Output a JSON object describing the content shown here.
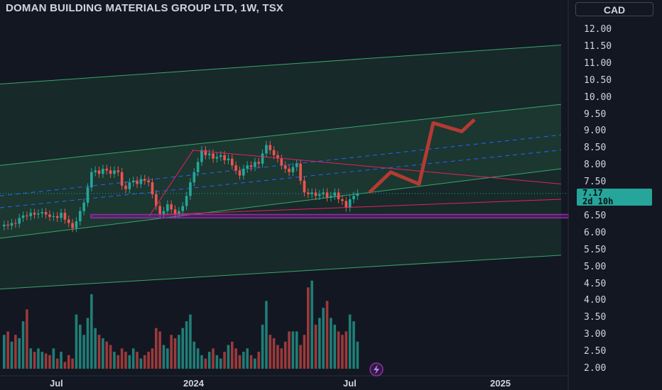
{
  "header": {
    "title": "DOMAN BUILDING MATERIALS GROUP LTD, 1W, TSX",
    "currency": "CAD"
  },
  "price_badge": {
    "price": "7.17",
    "countdown": "2d 10h"
  },
  "chart_data": {
    "type": "candlestick",
    "y_ticks": [
      "12.00",
      "11.50",
      "11.00",
      "10.50",
      "10.00",
      "9.50",
      "9.00",
      "8.50",
      "8.00",
      "7.50",
      "7.00",
      "6.50",
      "6.00",
      "5.50",
      "5.00",
      "4.50",
      "4.00",
      "3.50",
      "3.00",
      "2.50",
      "2.00"
    ],
    "x_ticks": [
      "Jul",
      "2024",
      "Jul",
      "2025"
    ],
    "ylim": [
      2.0,
      12.0
    ],
    "last_price": 7.17,
    "colors": {
      "up": "#26a69a",
      "down": "#ef5350",
      "volume_up": "#1f7e76",
      "volume_down": "#9c3a3a",
      "channel": "#2e7d4f",
      "support": "#9c27b0",
      "projection": "#b23b33"
    },
    "candles_close": [
      6.25,
      6.22,
      6.3,
      6.28,
      6.45,
      6.52,
      6.5,
      6.6,
      6.55,
      6.58,
      6.62,
      6.55,
      6.48,
      6.5,
      6.45,
      6.6,
      6.4,
      6.3,
      6.15,
      6.35,
      6.65,
      6.9,
      7.35,
      7.8,
      7.85,
      7.75,
      7.9,
      7.85,
      7.75,
      7.85,
      7.8,
      7.4,
      7.3,
      7.5,
      7.55,
      7.45,
      7.6,
      7.55,
      7.5,
      7.15,
      6.8,
      6.55,
      6.65,
      6.85,
      6.7,
      6.55,
      6.65,
      6.8,
      7.1,
      7.5,
      7.8,
      8.1,
      8.45,
      8.3,
      8.35,
      8.2,
      8.25,
      8.3,
      8.15,
      8.2,
      8.0,
      7.85,
      7.7,
      7.9,
      8.0,
      7.95,
      8.1,
      8.05,
      8.35,
      8.6,
      8.45,
      8.3,
      8.2,
      8.0,
      7.9,
      7.8,
      7.95,
      8.05,
      7.55,
      7.2,
      7.15,
      7.2,
      7.1,
      7.15,
      7.2,
      7.05,
      7.1,
      7.2,
      7.0,
      6.95,
      6.75,
      7.0,
      7.1,
      7.17
    ],
    "volume": [
      3.0,
      3.1,
      2.8,
      3.0,
      2.9,
      3.4,
      3.75,
      2.6,
      2.5,
      2.6,
      2.5,
      2.45,
      2.4,
      2.6,
      2.3,
      2.5,
      2.2,
      2.4,
      2.3,
      3.6,
      3.3,
      3.0,
      3.5,
      4.2,
      3.2,
      3.0,
      2.9,
      2.8,
      2.7,
      2.5,
      2.4,
      2.6,
      2.5,
      2.4,
      2.6,
      2.5,
      2.3,
      2.4,
      2.5,
      2.6,
      3.2,
      3.1,
      2.7,
      2.6,
      3.0,
      2.9,
      3.0,
      3.2,
      3.4,
      3.6,
      2.8,
      2.6,
      2.4,
      2.3,
      2.5,
      2.6,
      2.4,
      2.3,
      2.5,
      2.7,
      2.8,
      2.6,
      2.4,
      2.5,
      2.6,
      2.4,
      2.3,
      2.5,
      3.3,
      4.0,
      3.0,
      2.9,
      2.7,
      2.6,
      2.8,
      3.1,
      3.1,
      3.1,
      2.7,
      3.0,
      4.4,
      4.6,
      3.3,
      3.5,
      3.8,
      4.0,
      3.5,
      3.3,
      3.1,
      3.0,
      3.1,
      3.6,
      3.4,
      2.8
    ],
    "channel_upper": [
      [
        0,
        8.0
      ],
      [
        790,
        9.8
      ]
    ],
    "channel_middle": [
      [
        0,
        7.1
      ],
      [
        790,
        8.9
      ]
    ],
    "channel_lower": [
      [
        0,
        5.85
      ],
      [
        790,
        7.9
      ]
    ],
    "outer_channel_upper": [
      [
        0,
        10.4
      ],
      [
        790,
        11.55
      ]
    ],
    "outer_channel_lower": [
      [
        0,
        4.35
      ],
      [
        790,
        5.35
      ]
    ],
    "resistance_line": [
      [
        270,
        8.45
      ],
      [
        790,
        7.45
      ]
    ],
    "rising_support": [
      [
        230,
        6.55
      ],
      [
        790,
        7.0
      ]
    ],
    "support_zone": [
      6.45,
      6.55
    ],
    "projection": [
      [
        520,
        7.2
      ],
      [
        550,
        7.8
      ],
      [
        590,
        7.45
      ],
      [
        610,
        9.25
      ],
      [
        650,
        9.0
      ],
      [
        668,
        9.35
      ]
    ]
  }
}
